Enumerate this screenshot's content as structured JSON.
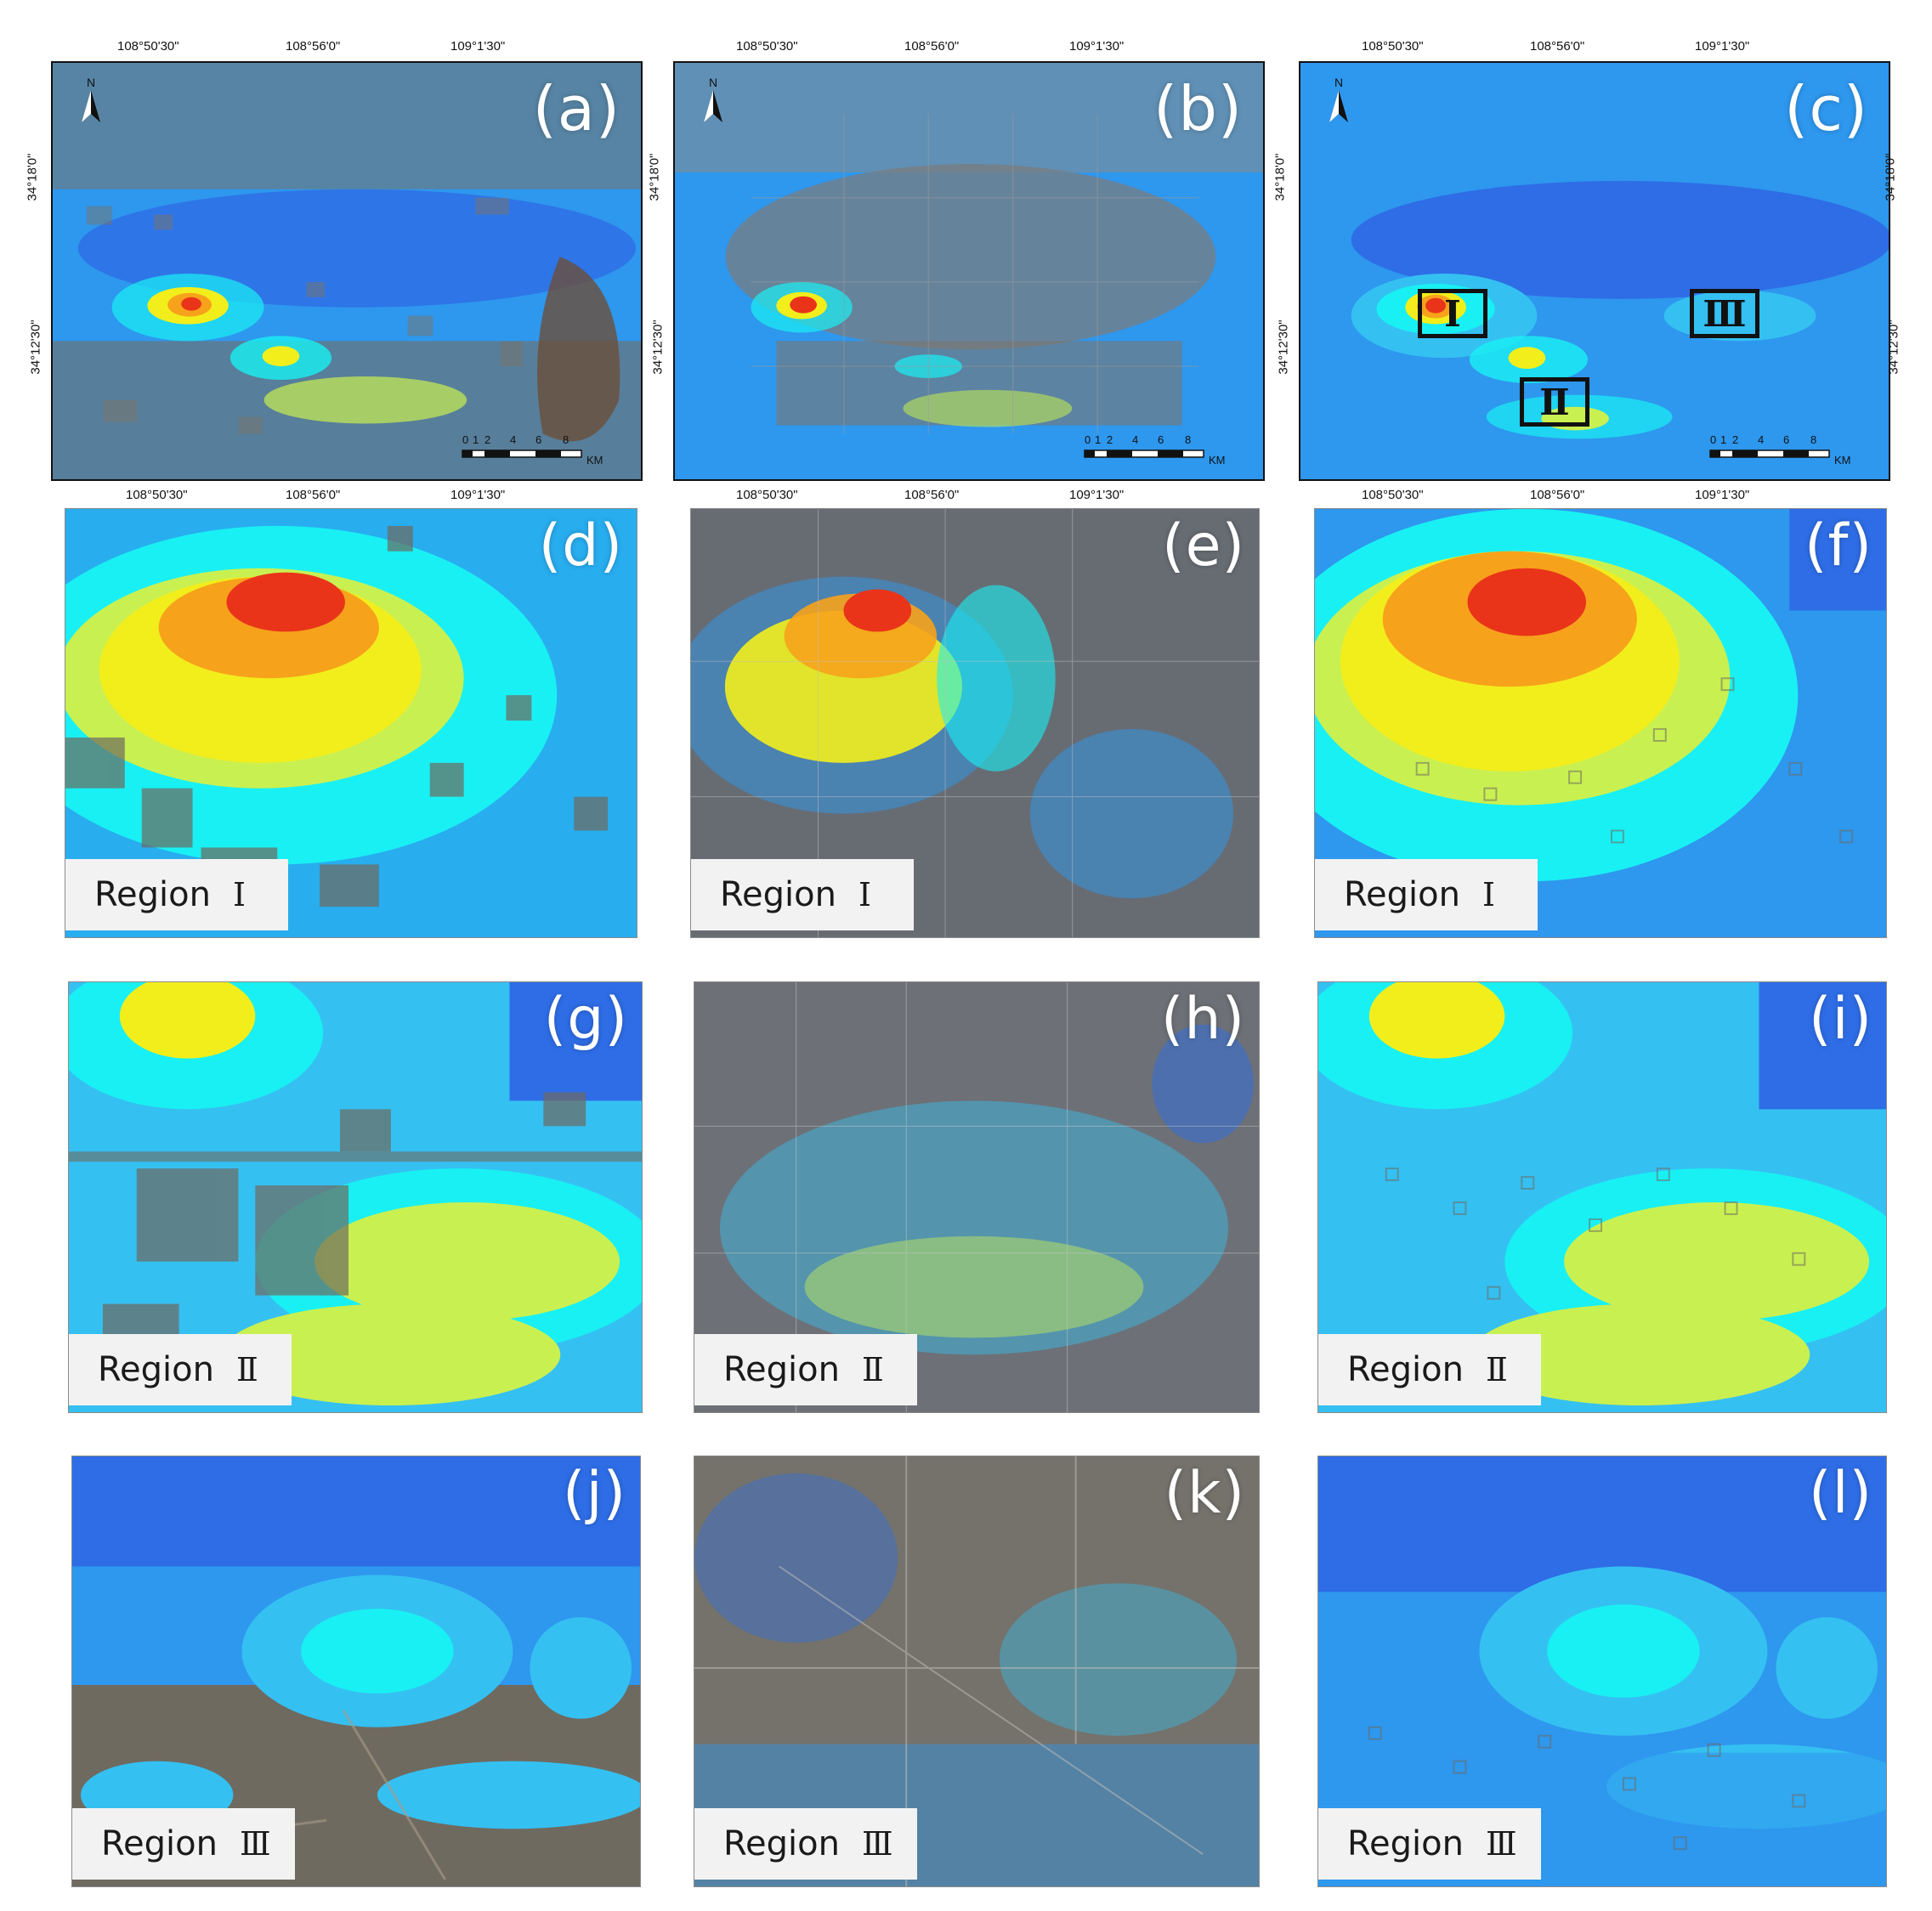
{
  "panels_top": [
    {
      "id": "a",
      "label": "(a)"
    },
    {
      "id": "b",
      "label": "(b)"
    },
    {
      "id": "c",
      "label": "(c)"
    }
  ],
  "insets": [
    {
      "id": "d",
      "label": "(d)",
      "region": "Region",
      "numeral": "Ⅰ"
    },
    {
      "id": "e",
      "label": "(e)",
      "region": "Region",
      "numeral": "Ⅰ"
    },
    {
      "id": "f",
      "label": "(f)",
      "region": "Region",
      "numeral": "Ⅰ"
    },
    {
      "id": "g",
      "label": "(g)",
      "region": "Region",
      "numeral": "Ⅱ"
    },
    {
      "id": "h",
      "label": "(h)",
      "region": "Region",
      "numeral": "Ⅱ"
    },
    {
      "id": "i",
      "label": "(i)",
      "region": "Region",
      "numeral": "Ⅱ"
    },
    {
      "id": "j",
      "label": "(j)",
      "region": "Region",
      "numeral": "Ⅲ"
    },
    {
      "id": "k",
      "label": "(k)",
      "region": "Region",
      "numeral": "Ⅲ"
    },
    {
      "id": "l",
      "label": "(l)",
      "region": "Region",
      "numeral": "Ⅲ"
    }
  ],
  "coordinates": {
    "lon": [
      "108°50'30\"",
      "108°56'0\"",
      "109°1'30\""
    ],
    "lat": [
      "34°18'0\"",
      "34°12'30\""
    ]
  },
  "scalebar": {
    "ticks": [
      "0",
      "1",
      "2",
      "4",
      "6",
      "8"
    ],
    "unit": "KM"
  },
  "north_label": "N",
  "study_regions": [
    {
      "id": "I",
      "numeral": "Ⅰ"
    },
    {
      "id": "II",
      "numeral": "Ⅱ"
    },
    {
      "id": "III",
      "numeral": "Ⅲ"
    }
  ],
  "colors": {
    "deep_blue": "#2e6de6",
    "blue": "#2e97ee",
    "light_blue": "#35c0f2",
    "cyan": "#19f0f3",
    "green_yellow": "#c9f051",
    "yellow": "#f2ee1c",
    "orange": "#f7a21b",
    "red": "#e9341a",
    "imagery": "#6e6a60"
  }
}
